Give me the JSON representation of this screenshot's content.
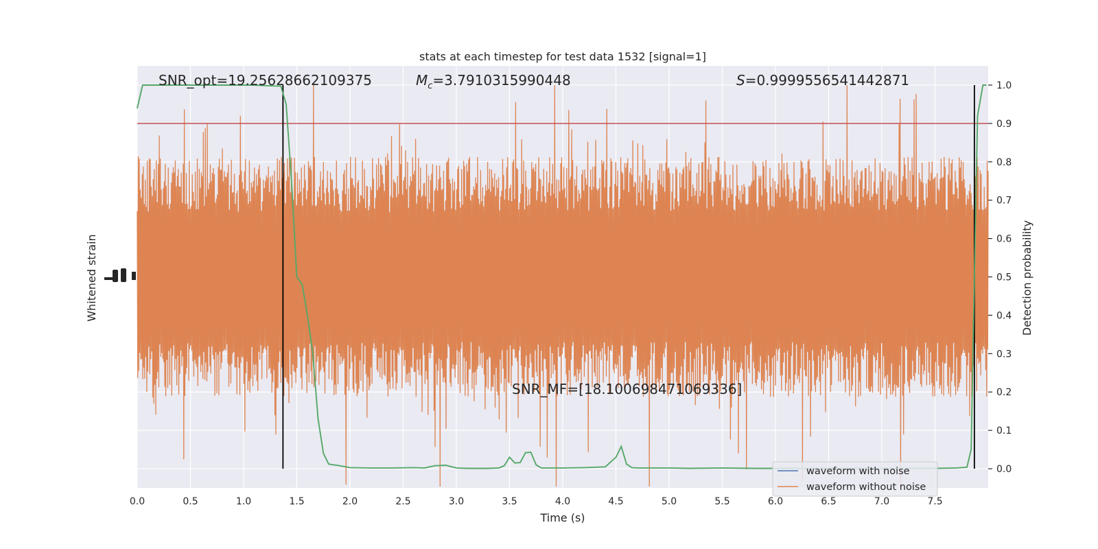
{
  "chart_data": {
    "type": "line",
    "title": "stats at each timestep for test data 1532 [signal=1]",
    "xlabel": "Time (s)",
    "ylabel_left": "Whitened strain",
    "ylabel_right": "Detection probability",
    "xlim": [
      0.0,
      8.0
    ],
    "ylim_right": [
      -0.05,
      1.05
    ],
    "x_ticks": [
      "0.0",
      "0.5",
      "1.0",
      "1.5",
      "2.0",
      "2.5",
      "3.0",
      "3.5",
      "4.0",
      "4.5",
      "5.0",
      "5.5",
      "6.0",
      "6.5",
      "7.0",
      "7.5"
    ],
    "y_ticks_right": [
      "0.0",
      "0.1",
      "0.2",
      "0.3",
      "0.4",
      "0.5",
      "0.6",
      "0.7",
      "0.8",
      "0.9",
      "1.0"
    ],
    "grid": true,
    "threshold": 0.9,
    "vlines": [
      1.37,
      7.87
    ],
    "annotations": {
      "snr_opt": "SNR_opt=19.25628662109375",
      "mc_symbol": "M",
      "mc_sub": "c",
      "mc_value": "=3.7910315990448",
      "s_symbol": "S",
      "s_value": "=0.9999556541442871",
      "snr_mf": "SNR_MF=[18.100698471069336]"
    },
    "series": [
      {
        "name": "waveform with noise",
        "color": "#4c72b0"
      },
      {
        "name": "waveform without noise",
        "color": "#dd8452"
      },
      {
        "name": "",
        "color": "#55a868",
        "x": [
          0.0,
          0.05,
          0.1,
          0.2,
          0.3,
          0.5,
          0.7,
          0.9,
          1.1,
          1.25,
          1.35,
          1.4,
          1.45,
          1.5,
          1.55,
          1.6,
          1.65,
          1.7,
          1.75,
          1.8,
          1.9,
          2.0,
          2.2,
          2.4,
          2.6,
          2.7,
          2.8,
          2.9,
          3.0,
          3.1,
          3.2,
          3.3,
          3.4,
          3.45,
          3.5,
          3.55,
          3.6,
          3.65,
          3.7,
          3.75,
          3.8,
          3.85,
          3.9,
          4.0,
          4.2,
          4.4,
          4.5,
          4.55,
          4.6,
          4.65,
          4.7,
          4.8,
          5.0,
          5.2,
          5.5,
          5.8,
          6.0,
          6.3,
          6.6,
          6.9,
          7.2,
          7.5,
          7.7,
          7.8,
          7.84,
          7.87,
          7.9,
          7.95,
          7.98
        ],
        "y": [
          0.94,
          1.0,
          1.0,
          1.0,
          1.0,
          1.0,
          1.0,
          1.0,
          1.0,
          0.998,
          0.997,
          0.95,
          0.75,
          0.5,
          0.48,
          0.4,
          0.3,
          0.13,
          0.04,
          0.012,
          0.008,
          0.003,
          0.002,
          0.002,
          0.003,
          0.002,
          0.008,
          0.009,
          0.002,
          0.001,
          0.001,
          0.001,
          0.002,
          0.008,
          0.03,
          0.015,
          0.016,
          0.042,
          0.043,
          0.01,
          0.002,
          0.002,
          0.002,
          0.002,
          0.003,
          0.005,
          0.03,
          0.058,
          0.012,
          0.003,
          0.002,
          0.002,
          0.002,
          0.001,
          0.002,
          0.001,
          0.001,
          0.001,
          0.001,
          0.001,
          0.001,
          0.001,
          0.002,
          0.004,
          0.05,
          0.5,
          0.92,
          1.0,
          1.0
        ]
      }
    ],
    "legend_placement": "lower-right",
    "colors": {
      "background": "#eaeaf2",
      "grid": "#ffffff",
      "threshold_line": "#c44e52",
      "vline": "#000000"
    }
  }
}
